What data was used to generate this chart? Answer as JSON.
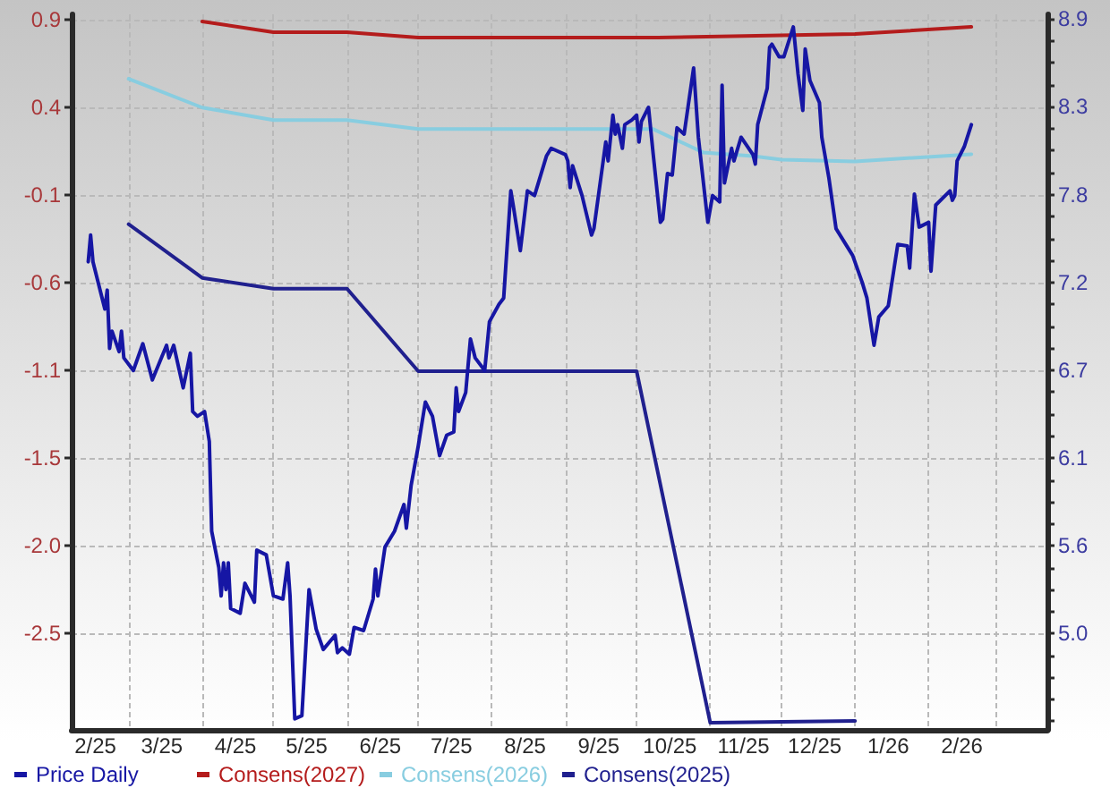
{
  "chart_data": {
    "type": "line",
    "xlim": [
      "2025-02-05",
      "2026-03-23"
    ],
    "xticks": [
      {
        "value": "2025-02-15",
        "label": "2/25"
      },
      {
        "value": "2025-03-01",
        "label": null
      },
      {
        "value": "2025-03-15",
        "label": "3/25"
      },
      {
        "value": "2025-04-01",
        "label": null
      },
      {
        "value": "2025-04-15",
        "label": "4/25"
      },
      {
        "value": "2025-05-01",
        "label": null
      },
      {
        "value": "2025-05-15",
        "label": "5/25"
      },
      {
        "value": "2025-06-01",
        "label": null
      },
      {
        "value": "2025-06-15",
        "label": "6/25"
      },
      {
        "value": "2025-07-01",
        "label": null
      },
      {
        "value": "2025-07-15",
        "label": "7/25"
      },
      {
        "value": "2025-08-01",
        "label": null
      },
      {
        "value": "2025-08-15",
        "label": "8/25"
      },
      {
        "value": "2025-09-01",
        "label": null
      },
      {
        "value": "2025-09-15",
        "label": "9/25"
      },
      {
        "value": "2025-10-01",
        "label": null
      },
      {
        "value": "2025-10-15",
        "label": "10/25"
      },
      {
        "value": "2025-11-01",
        "label": null
      },
      {
        "value": "2025-11-15",
        "label": "11/25"
      },
      {
        "value": "2025-12-01",
        "label": null
      },
      {
        "value": "2025-12-15",
        "label": "12/25"
      },
      {
        "value": "2026-01-01",
        "label": null
      },
      {
        "value": "2026-01-15",
        "label": "1/26"
      },
      {
        "value": "2026-02-01",
        "label": null
      },
      {
        "value": "2026-02-15",
        "label": "2/26"
      },
      {
        "value": "2026-03-01",
        "label": null
      }
    ],
    "ylim": [
      -3.06,
      0.93
    ],
    "yticks": [
      0.9,
      {
        "value": 0.411,
        "label": "0.4"
      },
      {
        "value": -0.078,
        "label": "-0.1"
      },
      {
        "value": -0.567,
        "label": "-0.6"
      },
      {
        "value": -1.056,
        "label": "-1.1"
      },
      {
        "value": -1.545,
        "label": "-1.5"
      },
      {
        "value": -2.034,
        "label": "-2.0"
      },
      {
        "value": -2.523,
        "label": "-2.5"
      }
    ],
    "y2lim": [
      4.39,
      8.93
    ],
    "y2ticks": [
      8.9,
      {
        "value": 8.761,
        "label": null
      },
      {
        "value": 8.622,
        "label": null
      },
      {
        "value": 8.482,
        "label": null
      },
      {
        "value": 8.343,
        "label": "8.3"
      },
      {
        "value": 8.204,
        "label": null
      },
      {
        "value": 8.065,
        "label": null
      },
      {
        "value": 7.925,
        "label": null
      },
      {
        "value": 7.786,
        "label": "7.8"
      },
      {
        "value": 7.647,
        "label": null
      },
      {
        "value": 7.508,
        "label": null
      },
      {
        "value": 7.368,
        "label": null
      },
      {
        "value": 7.229,
        "label": "7.2"
      },
      {
        "value": 7.09,
        "label": null
      },
      {
        "value": 6.951,
        "label": null
      },
      {
        "value": 6.811,
        "label": null
      },
      {
        "value": 6.672,
        "label": "6.7"
      },
      {
        "value": 6.533,
        "label": null
      },
      {
        "value": 6.394,
        "label": null
      },
      {
        "value": 6.254,
        "label": null
      },
      {
        "value": 6.115,
        "label": "6.1"
      },
      {
        "value": 5.976,
        "label": null
      },
      {
        "value": 5.837,
        "label": null
      },
      {
        "value": 5.697,
        "label": null
      },
      {
        "value": 5.558,
        "label": "5.6"
      },
      {
        "value": 5.419,
        "label": null
      },
      {
        "value": 5.28,
        "label": null
      },
      {
        "value": 5.14,
        "label": null
      },
      {
        "value": 5.001,
        "label": "5.0"
      },
      {
        "value": 4.862,
        "label": null
      },
      {
        "value": 4.723,
        "label": null
      },
      {
        "value": 4.583,
        "label": null
      },
      {
        "value": 4.444,
        "label": null
      }
    ],
    "grid": true,
    "legend": "bottom left",
    "series": [
      {
        "name": "Price Daily",
        "color": "#1616a4",
        "axis": "y2",
        "x": [
          "2025-02-12",
          "2025-02-13",
          "2025-02-14",
          "2025-02-19",
          "2025-02-20",
          "2025-02-21",
          "2025-02-22",
          "2025-02-25",
          "2025-02-26",
          "2025-02-27",
          "2025-03-03",
          "2025-03-07",
          "2025-03-11",
          "2025-03-17",
          "2025-03-18",
          "2025-03-20",
          "2025-03-24",
          "2025-03-27",
          "2025-03-28",
          "2025-03-30",
          "2025-04-02",
          "2025-04-04",
          "2025-04-05",
          "2025-04-08",
          "2025-04-09",
          "2025-04-10",
          "2025-04-11",
          "2025-04-12",
          "2025-04-13",
          "2025-04-17",
          "2025-04-19",
          "2025-04-23",
          "2025-04-24",
          "2025-04-28",
          "2025-05-01",
          "2025-05-05",
          "2025-05-07",
          "2025-05-08",
          "2025-05-10",
          "2025-05-13",
          "2025-05-16",
          "2025-05-19",
          "2025-05-22",
          "2025-05-27",
          "2025-05-28",
          "2025-05-30",
          "2025-06-02",
          "2025-06-04",
          "2025-06-08",
          "2025-06-12",
          "2025-06-13",
          "2025-06-14",
          "2025-06-17",
          "2025-06-21",
          "2025-06-25",
          "2025-06-26",
          "2025-06-28",
          "2025-07-01",
          "2025-07-04",
          "2025-07-07",
          "2025-07-10",
          "2025-07-13",
          "2025-07-16",
          "2025-07-17",
          "2025-07-18",
          "2025-07-21",
          "2025-07-23",
          "2025-07-25",
          "2025-07-29",
          "2025-07-31",
          "2025-08-04",
          "2025-08-06",
          "2025-08-09",
          "2025-08-10",
          "2025-08-13",
          "2025-08-16",
          "2025-08-19",
          "2025-08-24",
          "2025-08-26",
          "2025-09-01",
          "2025-09-02",
          "2025-09-03",
          "2025-09-04",
          "2025-09-08",
          "2025-09-12",
          "2025-09-13",
          "2025-09-18",
          "2025-09-19",
          "2025-09-21",
          "2025-09-22",
          "2025-09-23",
          "2025-09-25",
          "2025-09-26",
          "2025-09-29",
          "2025-10-01",
          "2025-10-02",
          "2025-10-03",
          "2025-10-06",
          "2025-10-08",
          "2025-10-11",
          "2025-10-12",
          "2025-10-14",
          "2025-10-16",
          "2025-10-18",
          "2025-10-21",
          "2025-10-25",
          "2025-10-27",
          "2025-10-31",
          "2025-11-02",
          "2025-11-05",
          "2025-11-06",
          "2025-11-07",
          "2025-11-10",
          "2025-11-11",
          "2025-11-14",
          "2025-11-19",
          "2025-11-20",
          "2025-11-21",
          "2025-11-25",
          "2025-11-26",
          "2025-11-27",
          "2025-11-30",
          "2025-12-02",
          "2025-12-06",
          "2025-12-08",
          "2025-12-10",
          "2025-12-11",
          "2025-12-13",
          "2025-12-17",
          "2025-12-18",
          "2025-12-21",
          "2025-12-24",
          "2025-12-31",
          "2026-01-04",
          "2026-01-06",
          "2026-01-09",
          "2026-01-11",
          "2026-01-15",
          "2026-01-19",
          "2026-01-23",
          "2026-01-24",
          "2026-01-26",
          "2026-01-28",
          "2026-02-01",
          "2026-02-02",
          "2026-02-04",
          "2026-02-10",
          "2026-02-11",
          "2026-02-12",
          "2026-02-13",
          "2026-02-16",
          "2026-02-19"
        ],
        "values": [
          7.36,
          7.53,
          7.36,
          7.06,
          7.18,
          6.81,
          6.92,
          6.79,
          6.92,
          6.75,
          6.67,
          6.84,
          6.61,
          6.83,
          6.75,
          6.83,
          6.56,
          6.78,
          6.41,
          6.38,
          6.41,
          6.22,
          5.65,
          5.42,
          5.24,
          5.45,
          5.28,
          5.45,
          5.16,
          5.13,
          5.32,
          5.2,
          5.53,
          5.5,
          5.24,
          5.22,
          5.45,
          5.24,
          4.46,
          4.48,
          5.28,
          5.03,
          4.9,
          4.99,
          4.88,
          4.91,
          4.87,
          5.04,
          5.02,
          5.22,
          5.41,
          5.24,
          5.55,
          5.65,
          5.82,
          5.67,
          5.94,
          6.19,
          6.47,
          6.38,
          6.13,
          6.26,
          6.28,
          6.56,
          6.41,
          6.53,
          6.87,
          6.75,
          6.67,
          6.98,
          7.09,
          7.13,
          7.81,
          7.72,
          7.43,
          7.81,
          7.78,
          8.03,
          8.08,
          8.04,
          8.0,
          7.83,
          7.97,
          7.78,
          7.53,
          7.57,
          8.12,
          8.0,
          8.29,
          8.17,
          8.23,
          8.08,
          8.23,
          8.26,
          8.29,
          8.12,
          8.25,
          8.34,
          8.04,
          7.61,
          7.63,
          7.92,
          7.91,
          8.21,
          8.17,
          8.59,
          8.15,
          7.61,
          7.78,
          7.74,
          8.48,
          7.86,
          8.08,
          8.0,
          8.15,
          8.04,
          7.98,
          8.23,
          8.46,
          8.72,
          8.74,
          8.66,
          8.66,
          8.85,
          8.55,
          8.32,
          8.71,
          8.51,
          8.37,
          8.15,
          7.89,
          7.57,
          7.4,
          7.23,
          7.13,
          6.83,
          7.01,
          7.08,
          7.47,
          7.46,
          7.32,
          7.79,
          7.58,
          7.61,
          7.3,
          7.72,
          7.81,
          7.75,
          7.78,
          8.0,
          8.09,
          8.23
        ]
      },
      {
        "name": "Consens(2027)",
        "color": "#b41c1c",
        "x": [
          "2025-04-01",
          "2025-05-01",
          "2025-06-01",
          "2025-07-01",
          "2025-10-10",
          "2026-01-01",
          "2026-02-19"
        ],
        "values": [
          0.89,
          0.83,
          0.83,
          0.8,
          0.8,
          0.82,
          0.86
        ]
      },
      {
        "name": "Consens(2026)",
        "color": "#88cde0",
        "x": [
          "2025-03-01",
          "2025-04-01",
          "2025-05-01",
          "2025-06-01",
          "2025-07-01",
          "2025-10-08",
          "2025-10-29",
          "2025-11-19",
          "2025-12-01",
          "2026-01-01",
          "2026-02-19"
        ],
        "values": [
          0.57,
          0.41,
          0.34,
          0.34,
          0.29,
          0.29,
          0.16,
          0.14,
          0.12,
          0.11,
          0.15
        ]
      },
      {
        "name": "Consens(2025)",
        "color": "#20208e",
        "x": [
          "2025-03-01",
          "2025-04-01",
          "2025-05-01",
          "2025-06-01",
          "2025-07-01",
          "2025-10-01",
          "2025-11-01",
          "2026-01-01"
        ],
        "values": [
          -0.24,
          -0.54,
          -0.6,
          -0.6,
          -1.06,
          -1.06,
          -3.02,
          -3.01
        ]
      }
    ]
  }
}
